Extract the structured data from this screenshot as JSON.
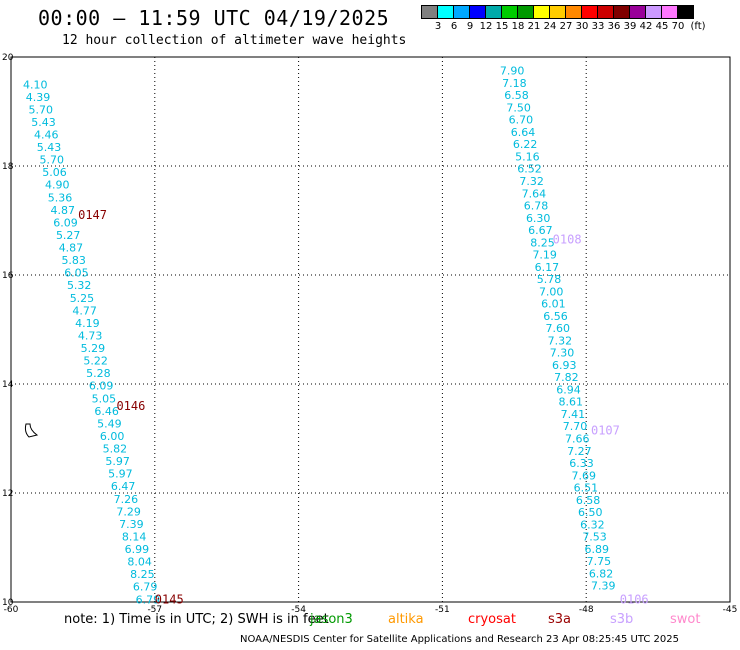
{
  "title": "00:00 – 11:59 UTC 04/19/2025",
  "subtitle": "12 hour collection of altimeter wave heights",
  "legend": {
    "unit": "(ft)",
    "colors": [
      "#808080",
      "#00ffff",
      "#00a8ff",
      "#0000ff",
      "#00aaaa",
      "#00cc00",
      "#009900",
      "#ffff00",
      "#ffcc00",
      "#ff8800",
      "#ff0000",
      "#cc0000",
      "#800000",
      "#990099",
      "#cc99ff",
      "#ff77ff",
      "#000000"
    ],
    "labels": [
      "3",
      "6",
      "9",
      "12",
      "15",
      "18",
      "21",
      "24",
      "27",
      "30",
      "33",
      "36",
      "39",
      "42",
      "45",
      "70"
    ]
  },
  "note": "note: 1) Time is in UTC; 2) SWH is in feet",
  "satellites": [
    {
      "name": "jason3",
      "color": "#009900"
    },
    {
      "name": "altika",
      "color": "#ff9900"
    },
    {
      "name": "cryosat",
      "color": "#ff0000"
    },
    {
      "name": "s3a",
      "color": "#990000"
    },
    {
      "name": "s3b",
      "color": "#c8a0ff"
    },
    {
      "name": "swot",
      "color": "#ff88cc"
    }
  ],
  "footer": "NOAA/NESDIS Center for Satellite Applications and Research    23 Apr 08:25:45 UTC 2025",
  "chart_data": {
    "type": "scatter",
    "xlim": [
      -60,
      -45
    ],
    "ylim": [
      10,
      20
    ],
    "xticks": [
      "-60",
      "-57",
      "-54",
      "-51",
      "-48",
      "-45"
    ],
    "yticks": [
      "10",
      "12",
      "14",
      "16",
      "18",
      "20"
    ],
    "grid": true,
    "value_color": "#00bbdd",
    "pass_label_colors": {
      "0145": "#880000",
      "0146": "#880000",
      "0147": "#880000",
      "0106": "#c8a0ff",
      "0107": "#c8a0ff",
      "0108": "#c8a0ff"
    },
    "tracks": [
      {
        "lon_start": -59.75,
        "lat_start": 19.5,
        "lon_end": -57.4,
        "lat_end": 10.05,
        "values": [
          "4.10",
          "4.39",
          "5.70",
          "5.43",
          "4.46",
          "5.43",
          "5.70",
          "5.06",
          "4.90",
          "5.36",
          "4.87",
          "6.09",
          "5.27",
          "4.87",
          "5.83",
          "6.05",
          "5.32",
          "5.25",
          "4.77",
          "4.19",
          "4.73",
          "5.29",
          "5.22",
          "5.28",
          "6.09",
          "5.05",
          "6.46",
          "5.49",
          "6.00",
          "5.82",
          "5.97",
          "5.97",
          "6.47",
          "7.26",
          "7.29",
          "7.39",
          "8.14",
          "6.99",
          "8.04",
          "8.25",
          "6.79",
          "6.79"
        ],
        "pass_labels": [
          {
            "label": "0147",
            "lat": 17.1,
            "lon": -58.6
          },
          {
            "label": "0146",
            "lat": 13.6,
            "lon": -57.8
          },
          {
            "label": "0145",
            "lat": 10.05,
            "lon": -57.0
          }
        ]
      },
      {
        "lon_start": -49.8,
        "lat_start": 19.75,
        "lon_end": -47.9,
        "lat_end": 10.3,
        "values": [
          "7.90",
          "7.18",
          "6.58",
          "7.50",
          "6.70",
          "6.64",
          "6.22",
          "5.16",
          "6.52",
          "7.32",
          "7.64",
          "6.78",
          "6.30",
          "6.67",
          "8.25",
          "7.19",
          "6.17",
          "5.78",
          "7.00",
          "6.01",
          "6.56",
          "7.60",
          "7.32",
          "7.30",
          "6.93",
          "7.82",
          "6.94",
          "8.61",
          "7.41",
          "7.70",
          "7.66",
          "7.27",
          "6.33",
          "7.69",
          "6.51",
          "6.58",
          "6.50",
          "6.32",
          "7.53",
          "6.89",
          "7.75",
          "6.82",
          "7.39"
        ],
        "pass_labels": [
          {
            "label": "0108",
            "lat": 16.65,
            "lon": -48.7
          },
          {
            "label": "0107",
            "lat": 13.15,
            "lon": -47.9
          },
          {
            "label": "0106",
            "lat": 10.05,
            "lon": -47.3
          }
        ]
      }
    ]
  }
}
